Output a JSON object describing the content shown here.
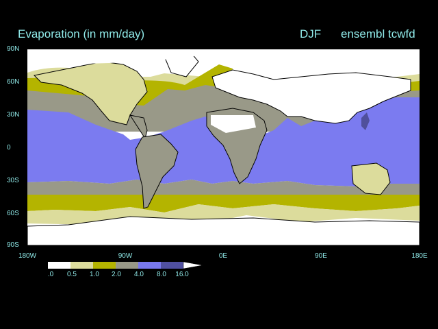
{
  "title": "Evaporation (in mm/day)",
  "season": "DJF",
  "model": "ensembl tcwfd",
  "lat_labels": [
    "90N",
    "60N",
    "30N",
    "0",
    "30S",
    "60S",
    "90S"
  ],
  "lon_labels": [
    "180W",
    "90W",
    "0E",
    "90E",
    "180E"
  ],
  "colorbar": {
    "labels": [
      ".0",
      "0.5",
      "1.0",
      "2.0",
      "4.0",
      "8.0",
      "16.0"
    ],
    "colors": [
      "#ffffff",
      "#dcdc9c",
      "#b4b400",
      "#989887",
      "#7878ee",
      "#5050a0"
    ]
  },
  "colors": {
    "ocean_high": "#7b7bf0",
    "ocean_mid": "#999988",
    "subpolar": "#b4b400",
    "low": "#dcdc9c",
    "very_low": "#ffffff",
    "intense": "#50509c",
    "text": "#8fe9e8"
  }
}
